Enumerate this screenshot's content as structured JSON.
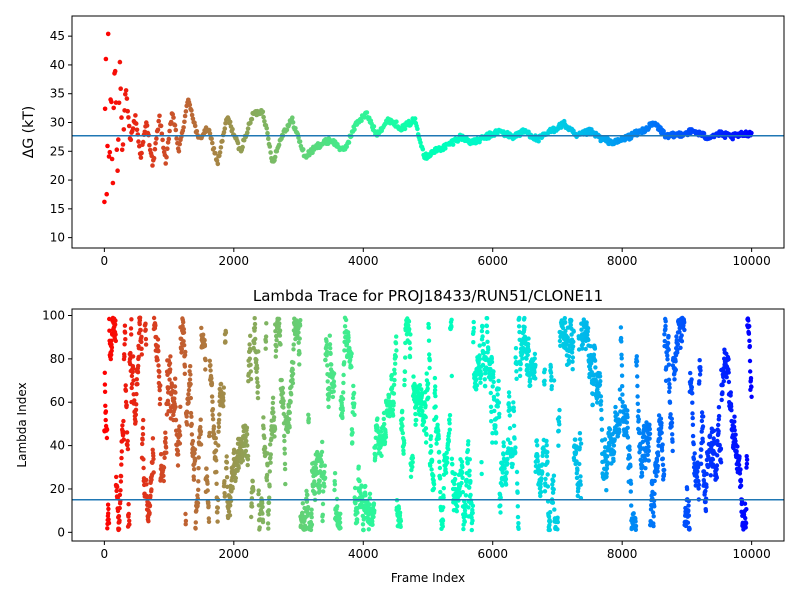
{
  "chart_data": [
    {
      "type": "scatter",
      "title": "",
      "xlabel": "",
      "ylabel": "ΔG (kT)",
      "xlim": [
        -500,
        10500
      ],
      "ylim": [
        8.2,
        48.5
      ],
      "xticks": [
        0,
        2000,
        4000,
        6000,
        8000,
        10000
      ],
      "yticks": [
        10,
        15,
        20,
        25,
        30,
        35,
        40,
        45
      ],
      "hline": 27.7,
      "colormap": "rainbow",
      "line_color": "#1f77b4",
      "series": [
        {
          "x": [
            0,
            20,
            40,
            60,
            80,
            100,
            130,
            160,
            200,
            240,
            280,
            330,
            400,
            480,
            560,
            650,
            750,
            850,
            950,
            1050,
            1150,
            1300,
            1450,
            1600,
            1750,
            1900,
            2100,
            2300,
            2450,
            2600,
            2750,
            2900,
            3100,
            3300,
            3500,
            3700,
            3900,
            4050,
            4200,
            4400,
            4600,
            4800,
            4950,
            5100,
            5300,
            5500,
            5700,
            5900,
            6100,
            6300,
            6500,
            6700,
            6900,
            7100,
            7300,
            7500,
            7700,
            7900,
            8100,
            8300,
            8500,
            8700,
            8900,
            9100,
            9300,
            9500,
            9700,
            9900,
            10000
          ],
          "y": [
            10,
            47.3,
            12,
            44,
            15,
            40,
            18,
            44.5,
            21,
            40.5,
            24,
            36,
            27,
            31,
            24,
            30,
            22.5,
            31,
            23,
            32,
            25,
            34.2,
            27,
            29,
            23,
            31,
            25,
            31.5,
            32,
            23,
            28,
            30.5,
            24,
            26,
            27,
            25,
            30,
            31.5,
            28,
            30.5,
            29,
            30.5,
            24,
            25,
            26,
            27.5,
            26.5,
            27.5,
            28.5,
            27.5,
            28.5,
            27,
            28.5,
            29.8,
            27.5,
            28.5,
            27,
            26.5,
            27.5,
            28.5,
            29.8,
            27.5,
            28,
            28.5,
            27.5,
            28,
            27.5,
            28,
            28.2
          ]
        }
      ]
    },
    {
      "type": "scatter",
      "title": "Lambda Trace for PROJ18433/RUN51/CLONE11",
      "xlabel": "Frame Index",
      "ylabel": "Lambda Index",
      "xlim": [
        -500,
        10500
      ],
      "ylim": [
        -4,
        103
      ],
      "xticks": [
        0,
        2000,
        4000,
        6000,
        8000,
        10000
      ],
      "yticks": [
        0,
        20,
        40,
        60,
        80,
        100
      ],
      "hline": 15,
      "colormap": "rainbow",
      "line_color": "#1f77b4",
      "value_range": [
        0,
        99
      ],
      "frame_range": [
        0,
        10000
      ]
    }
  ]
}
